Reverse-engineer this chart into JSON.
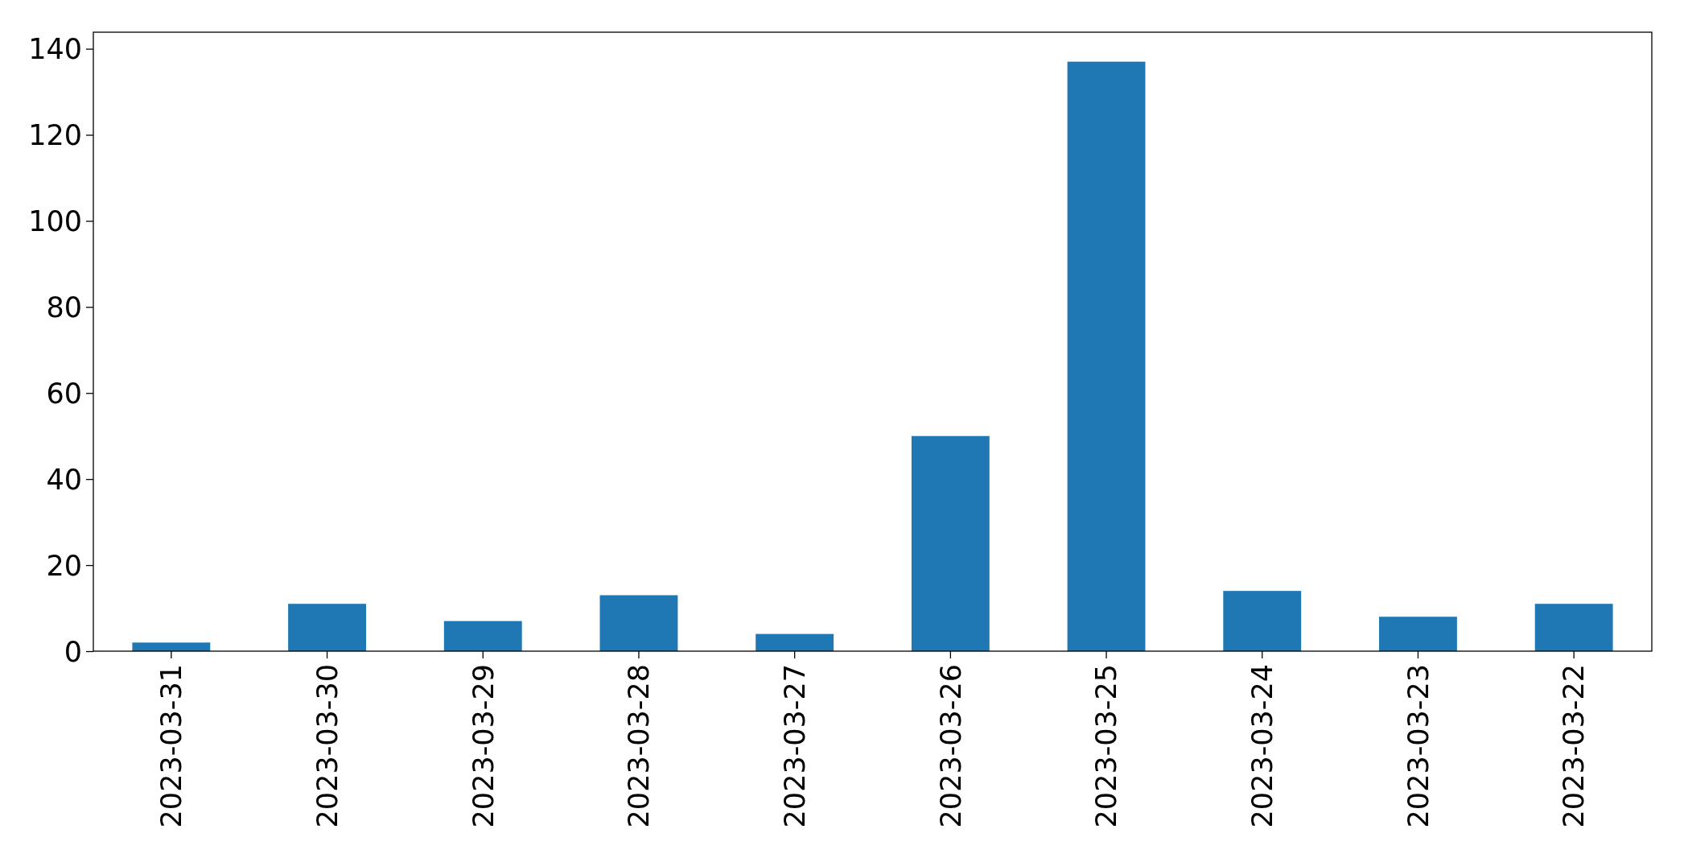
{
  "chart_data": {
    "type": "bar",
    "categories": [
      "2023-03-31",
      "2023-03-30",
      "2023-03-29",
      "2023-03-28",
      "2023-03-27",
      "2023-03-26",
      "2023-03-25",
      "2023-03-24",
      "2023-03-23",
      "2023-03-22"
    ],
    "values": [
      2,
      11,
      7,
      13,
      4,
      50,
      137,
      14,
      8,
      11
    ],
    "color": "#1f77b4",
    "ylim": [
      0,
      143.85
    ],
    "yticks": [
      0,
      20,
      40,
      60,
      80,
      100,
      120,
      140
    ],
    "grid": false
  }
}
